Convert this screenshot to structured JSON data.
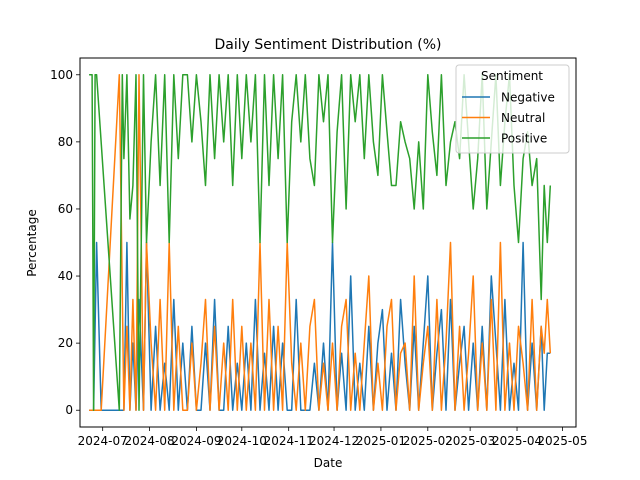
{
  "chart_data": {
    "type": "line",
    "title": "Daily Sentiment Distribution (%)",
    "xlabel": "Date",
    "ylabel": "Percentage",
    "xlim": [
      "2024-06-16",
      "2025-05-10"
    ],
    "ylim": [
      -5,
      105
    ],
    "x_ticks": [
      "2024-07",
      "2024-08",
      "2024-09",
      "2024-10",
      "2024-11",
      "2024-12",
      "2025-01",
      "2025-02",
      "2025-03",
      "2025-04",
      "2025-05"
    ],
    "y_ticks": [
      0,
      20,
      40,
      60,
      80,
      100
    ],
    "grid": false,
    "legend": {
      "title": "Sentiment",
      "placement": "top-right"
    },
    "series": [
      {
        "name": "Negative",
        "color": "#1f77b4",
        "x": [
          "2024-06-22",
          "2024-06-25",
          "2024-06-27",
          "2024-06-30",
          "2024-07-06",
          "2024-07-12",
          "2024-07-15",
          "2024-07-17",
          "2024-07-19",
          "2024-07-21",
          "2024-07-23",
          "2024-07-25",
          "2024-07-28",
          "2024-07-30",
          "2024-08-02",
          "2024-08-05",
          "2024-08-08",
          "2024-08-11",
          "2024-08-14",
          "2024-08-17",
          "2024-08-20",
          "2024-08-23",
          "2024-08-26",
          "2024-08-29",
          "2024-09-01",
          "2024-09-04",
          "2024-09-07",
          "2024-09-10",
          "2024-09-13",
          "2024-09-16",
          "2024-09-19",
          "2024-09-22",
          "2024-09-25",
          "2024-09-28",
          "2024-10-01",
          "2024-10-04",
          "2024-10-07",
          "2024-10-10",
          "2024-10-13",
          "2024-10-16",
          "2024-10-19",
          "2024-10-22",
          "2024-10-25",
          "2024-10-28",
          "2024-10-31",
          "2024-11-03",
          "2024-11-06",
          "2024-11-09",
          "2024-11-12",
          "2024-11-15",
          "2024-11-18",
          "2024-11-21",
          "2024-11-24",
          "2024-11-27",
          "2024-11-30",
          "2024-12-03",
          "2024-12-06",
          "2024-12-09",
          "2024-12-12",
          "2024-12-15",
          "2024-12-18",
          "2024-12-21",
          "2024-12-24",
          "2024-12-27",
          "2024-12-30",
          "2025-01-02",
          "2025-01-05",
          "2025-01-08",
          "2025-01-11",
          "2025-01-14",
          "2025-01-17",
          "2025-01-20",
          "2025-01-23",
          "2025-01-26",
          "2025-01-29",
          "2025-02-01",
          "2025-02-04",
          "2025-02-07",
          "2025-02-10",
          "2025-02-13",
          "2025-02-16",
          "2025-02-19",
          "2025-02-22",
          "2025-02-25",
          "2025-02-28",
          "2025-03-03",
          "2025-03-06",
          "2025-03-09",
          "2025-03-12",
          "2025-03-15",
          "2025-03-18",
          "2025-03-21",
          "2025-03-24",
          "2025-03-27",
          "2025-03-30",
          "2025-04-02",
          "2025-04-05",
          "2025-04-08",
          "2025-04-11",
          "2025-04-14",
          "2025-04-17",
          "2025-04-19",
          "2025-04-21",
          "2025-04-23"
        ],
        "values": [
          0,
          0,
          50,
          0,
          0,
          0,
          0,
          50,
          0,
          20,
          0,
          33,
          0,
          50,
          0,
          25,
          0,
          14,
          0,
          33,
          0,
          20,
          0,
          25,
          0,
          0,
          20,
          0,
          33,
          0,
          0,
          25,
          0,
          14,
          0,
          20,
          0,
          33,
          0,
          17,
          0,
          25,
          0,
          20,
          0,
          0,
          33,
          0,
          0,
          0,
          14,
          0,
          20,
          0,
          50,
          0,
          17,
          0,
          40,
          0,
          14,
          0,
          25,
          0,
          20,
          30,
          0,
          17,
          0,
          33,
          14,
          0,
          25,
          0,
          20,
          40,
          0,
          17,
          30,
          0,
          33,
          0,
          14,
          25,
          0,
          20,
          0,
          25,
          0,
          40,
          20,
          0,
          33,
          0,
          14,
          0,
          50,
          0,
          20,
          0,
          25,
          0,
          17,
          17
        ]
      },
      {
        "name": "Neutral",
        "color": "#ff7f0e",
        "x": [
          "2024-06-22",
          "2024-06-30",
          "2024-07-12",
          "2024-07-15",
          "2024-07-17",
          "2024-07-19",
          "2024-07-21",
          "2024-07-23",
          "2024-07-25",
          "2024-07-28",
          "2024-07-30",
          "2024-08-02",
          "2024-08-05",
          "2024-08-08",
          "2024-08-11",
          "2024-08-14",
          "2024-08-17",
          "2024-08-20",
          "2024-08-23",
          "2024-08-26",
          "2024-08-29",
          "2024-09-01",
          "2024-09-04",
          "2024-09-07",
          "2024-09-10",
          "2024-09-13",
          "2024-09-16",
          "2024-09-19",
          "2024-09-22",
          "2024-09-25",
          "2024-09-28",
          "2024-10-01",
          "2024-10-04",
          "2024-10-07",
          "2024-10-10",
          "2024-10-13",
          "2024-10-16",
          "2024-10-19",
          "2024-10-22",
          "2024-10-25",
          "2024-10-28",
          "2024-10-31",
          "2024-11-03",
          "2024-11-06",
          "2024-11-09",
          "2024-11-12",
          "2024-11-15",
          "2024-11-18",
          "2024-11-21",
          "2024-11-24",
          "2024-11-27",
          "2024-11-30",
          "2024-12-03",
          "2024-12-06",
          "2024-12-09",
          "2024-12-12",
          "2024-12-15",
          "2024-12-18",
          "2024-12-21",
          "2024-12-24",
          "2024-12-27",
          "2024-12-30",
          "2025-01-02",
          "2025-01-05",
          "2025-01-08",
          "2025-01-11",
          "2025-01-14",
          "2025-01-17",
          "2025-01-20",
          "2025-01-23",
          "2025-01-26",
          "2025-01-29",
          "2025-02-01",
          "2025-02-04",
          "2025-02-07",
          "2025-02-10",
          "2025-02-13",
          "2025-02-16",
          "2025-02-19",
          "2025-02-22",
          "2025-02-25",
          "2025-02-28",
          "2025-03-03",
          "2025-03-06",
          "2025-03-09",
          "2025-03-12",
          "2025-03-15",
          "2025-03-18",
          "2025-03-21",
          "2025-03-24",
          "2025-03-27",
          "2025-03-30",
          "2025-04-02",
          "2025-04-05",
          "2025-04-08",
          "2025-04-11",
          "2025-04-14",
          "2025-04-17",
          "2025-04-19",
          "2025-04-21",
          "2025-04-23"
        ],
        "values": [
          0,
          0,
          100,
          0,
          25,
          0,
          33,
          0,
          100,
          0,
          50,
          20,
          0,
          33,
          0,
          50,
          0,
          25,
          0,
          0,
          20,
          0,
          14,
          33,
          0,
          25,
          0,
          20,
          0,
          33,
          0,
          25,
          0,
          20,
          0,
          50,
          0,
          33,
          0,
          25,
          0,
          50,
          14,
          0,
          20,
          0,
          25,
          33,
          0,
          14,
          0,
          20,
          0,
          25,
          33,
          0,
          17,
          0,
          20,
          40,
          0,
          14,
          0,
          25,
          33,
          0,
          17,
          20,
          0,
          40,
          0,
          14,
          25,
          0,
          33,
          0,
          20,
          50,
          0,
          25,
          0,
          17,
          40,
          0,
          20,
          0,
          33,
          0,
          50,
          0,
          20,
          0,
          25,
          14,
          0,
          33,
          0,
          25,
          17,
          33,
          17
        ]
      },
      {
        "name": "Positive",
        "color": "#2ca02c",
        "x": [
          "2024-06-22",
          "2024-06-24",
          "2024-06-25",
          "2024-06-26",
          "2024-06-27",
          "2024-07-12",
          "2024-07-14",
          "2024-07-15",
          "2024-07-17",
          "2024-07-19",
          "2024-07-21",
          "2024-07-23",
          "2024-07-25",
          "2024-07-28",
          "2024-07-30",
          "2024-08-02",
          "2024-08-05",
          "2024-08-08",
          "2024-08-11",
          "2024-08-14",
          "2024-08-17",
          "2024-08-20",
          "2024-08-23",
          "2024-08-26",
          "2024-08-29",
          "2024-09-01",
          "2024-09-04",
          "2024-09-07",
          "2024-09-10",
          "2024-09-13",
          "2024-09-16",
          "2024-09-19",
          "2024-09-22",
          "2024-09-25",
          "2024-09-28",
          "2024-10-01",
          "2024-10-04",
          "2024-10-07",
          "2024-10-10",
          "2024-10-13",
          "2024-10-16",
          "2024-10-19",
          "2024-10-22",
          "2024-10-25",
          "2024-10-28",
          "2024-10-31",
          "2024-11-03",
          "2024-11-06",
          "2024-11-09",
          "2024-11-12",
          "2024-11-15",
          "2024-11-18",
          "2024-11-21",
          "2024-11-24",
          "2024-11-27",
          "2024-11-30",
          "2024-12-03",
          "2024-12-06",
          "2024-12-09",
          "2024-12-12",
          "2024-12-15",
          "2024-12-18",
          "2024-12-21",
          "2024-12-24",
          "2024-12-27",
          "2024-12-30",
          "2025-01-02",
          "2025-01-05",
          "2025-01-08",
          "2025-01-11",
          "2025-01-14",
          "2025-01-17",
          "2025-01-20",
          "2025-01-23",
          "2025-01-26",
          "2025-01-29",
          "2025-02-01",
          "2025-02-04",
          "2025-02-07",
          "2025-02-10",
          "2025-02-13",
          "2025-02-16",
          "2025-02-19",
          "2025-02-22",
          "2025-02-25",
          "2025-02-28",
          "2025-03-03",
          "2025-03-06",
          "2025-03-09",
          "2025-03-12",
          "2025-03-15",
          "2025-03-18",
          "2025-03-21",
          "2025-03-24",
          "2025-03-27",
          "2025-03-30",
          "2025-04-02",
          "2025-04-05",
          "2025-04-08",
          "2025-04-11",
          "2025-04-14",
          "2025-04-17",
          "2025-04-19",
          "2025-04-21",
          "2025-04-23"
        ],
        "values": [
          100,
          100,
          0,
          100,
          100,
          0,
          100,
          75,
          100,
          57,
          67,
          100,
          0,
          100,
          50,
          80,
          100,
          67,
          100,
          50,
          100,
          75,
          100,
          100,
          80,
          100,
          86,
          67,
          100,
          75,
          100,
          80,
          100,
          67,
          100,
          75,
          100,
          80,
          100,
          50,
          100,
          67,
          100,
          75,
          100,
          50,
          86,
          100,
          80,
          100,
          75,
          67,
          100,
          86,
          100,
          50,
          83,
          100,
          60,
          100,
          86,
          100,
          75,
          100,
          80,
          70,
          100,
          83,
          67,
          67,
          86,
          80,
          75,
          60,
          80,
          60,
          100,
          83,
          70,
          100,
          67,
          80,
          86,
          75,
          100,
          80,
          60,
          75,
          100,
          60,
          80,
          100,
          67,
          86,
          100,
          67,
          50,
          75,
          83,
          67,
          75,
          33,
          67,
          50,
          67
        ]
      }
    ]
  }
}
